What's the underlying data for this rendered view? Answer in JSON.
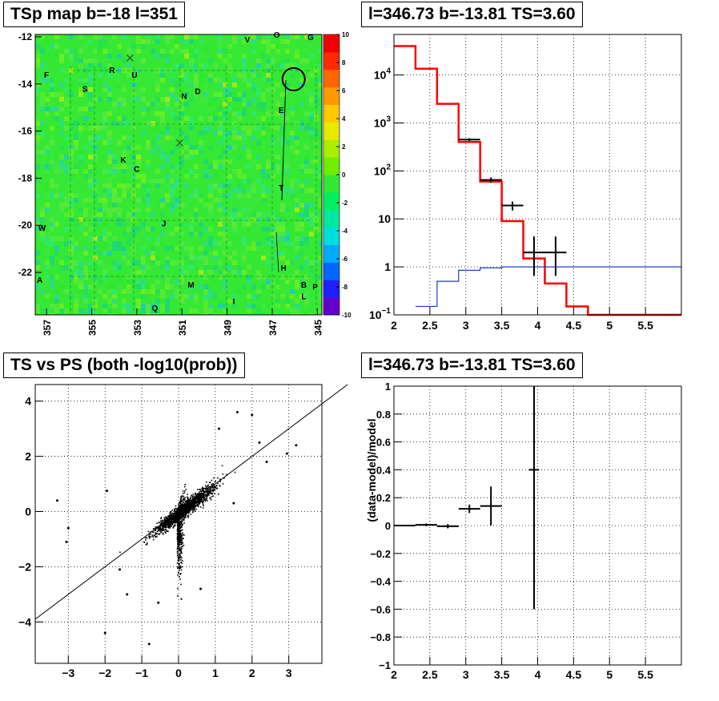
{
  "colors": {
    "map_background": "#35e834",
    "histogram_model": "#ff0000",
    "histogram_baseline": "#1f3fbf",
    "ink": "#000000",
    "frame": "#000000"
  },
  "chart_data": [
    {
      "type": "heatmap",
      "title": "TSp map b=-18 l=351",
      "x_ticks": [
        "357",
        "355",
        "353",
        "351",
        "349",
        "347",
        "345"
      ],
      "y_ticks": [
        "-12",
        "-14",
        "-16",
        "-18",
        "-20",
        "-22"
      ],
      "xlim": [
        357.5,
        344.8
      ],
      "ylim": [
        -23.8,
        -11.9
      ],
      "colorbar": {
        "ticks": [
          "10",
          "8",
          "6",
          "4",
          "2",
          "0",
          "-2",
          "-4",
          "-6",
          "-8",
          "-10"
        ],
        "range": [
          -10,
          10
        ],
        "colors": [
          "#6600cc",
          "#2020ff",
          "#0066ff",
          "#00aaff",
          "#00dddd",
          "#00e8a0",
          "#00ee60",
          "#35e834",
          "#70ee00",
          "#aaee00",
          "#e8e800",
          "#ffc800",
          "#ff9900",
          "#ff6600",
          "#ff2a00",
          "#ee0000"
        ]
      },
      "source_labels": [
        {
          "label": "F",
          "l": 357.0,
          "b": -13.6
        },
        {
          "label": "R",
          "l": 354.1,
          "b": -13.4
        },
        {
          "label": "U",
          "l": 353.1,
          "b": -13.6
        },
        {
          "label": "S",
          "l": 355.3,
          "b": -14.2
        },
        {
          "label": "N",
          "l": 350.9,
          "b": -14.5
        },
        {
          "label": "D",
          "l": 350.3,
          "b": -14.3
        },
        {
          "label": "V",
          "l": 348.1,
          "b": -12.1
        },
        {
          "label": "O",
          "l": 346.8,
          "b": -11.9
        },
        {
          "label": "G",
          "l": 345.3,
          "b": -12.0
        },
        {
          "label": "E",
          "l": 346.6,
          "b": -15.1
        },
        {
          "label": "K",
          "l": 353.6,
          "b": -17.2
        },
        {
          "label": "C",
          "l": 353.0,
          "b": -17.6
        },
        {
          "label": "T",
          "l": 346.6,
          "b": -18.4
        },
        {
          "label": "J",
          "l": 351.8,
          "b": -19.9
        },
        {
          "label": "W",
          "l": 357.2,
          "b": -20.1
        },
        {
          "label": "H",
          "l": 346.5,
          "b": -21.8
        },
        {
          "label": "A",
          "l": 357.3,
          "b": -22.3
        },
        {
          "label": "M",
          "l": 350.6,
          "b": -22.5
        },
        {
          "label": "B",
          "l": 345.6,
          "b": -22.5
        },
        {
          "label": "P",
          "l": 345.1,
          "b": -22.6
        },
        {
          "label": "L",
          "l": 345.6,
          "b": -23.0
        },
        {
          "label": "I",
          "l": 348.7,
          "b": -23.2
        },
        {
          "label": "Q",
          "l": 352.2,
          "b": -23.5
        }
      ],
      "cross_markers": [
        {
          "l": 353.3,
          "b": -12.9
        },
        {
          "l": 351.1,
          "b": -16.5
        }
      ],
      "circle_marker": {
        "l": 346.05,
        "b": -13.8
      }
    },
    {
      "type": "line",
      "title": "l=346.73 b=-13.81 TS=3.60",
      "xlim": [
        2,
        6
      ],
      "ylim": [
        0.1,
        70000
      ],
      "log_y": true,
      "grid": true,
      "x_ticks": [
        "2",
        "2.5",
        "3",
        "3.5",
        "4",
        "4.5",
        "5",
        "5.5"
      ],
      "y_ticks": [
        {
          "value": 10000,
          "base": "10",
          "exp": "4"
        },
        {
          "value": 1000,
          "base": "10",
          "exp": "3"
        },
        {
          "value": 100,
          "base": "10",
          "exp": "2"
        },
        {
          "value": 10,
          "base": "10",
          "exp": ""
        },
        {
          "value": 1,
          "base": "1",
          "exp": ""
        },
        {
          "value": 0.1,
          "base": "10",
          "exp": "−1"
        }
      ],
      "series": [
        {
          "kind": "step",
          "color": "#ff0000",
          "edges": [
            2.0,
            2.3,
            2.6,
            2.9,
            3.2,
            3.5,
            3.8,
            4.1,
            4.4,
            4.7,
            6.0
          ],
          "values": [
            40000,
            13500,
            2500,
            400,
            60,
            9,
            1.5,
            0.45,
            0.15,
            0.1
          ]
        },
        {
          "kind": "step",
          "color": "#1f3fbf",
          "edges": [
            2.3,
            2.6,
            2.9,
            3.2,
            3.5,
            3.8,
            4.1,
            6.0
          ],
          "values": [
            0.15,
            0.5,
            0.85,
            0.95,
            1.0,
            1.0,
            1.0
          ]
        },
        {
          "kind": "points",
          "color": "#000000",
          "points": [
            {
              "x": 3.05,
              "y": 450,
              "xerr": 0.15,
              "ylo": 420,
              "yhi": 480
            },
            {
              "x": 3.35,
              "y": 65,
              "xerr": 0.15,
              "ylo": 57,
              "yhi": 73
            },
            {
              "x": 3.65,
              "y": 19,
              "xerr": 0.15,
              "ylo": 15,
              "yhi": 23
            },
            {
              "x": 3.95,
              "y": 2,
              "xerr": 0.15,
              "ylo": 0.65,
              "yhi": 4.3
            },
            {
              "x": 4.25,
              "y": 2,
              "xerr": 0.15,
              "ylo": 0.65,
              "yhi": 4.3
            }
          ]
        }
      ]
    },
    {
      "type": "scatter",
      "title": "TS vs PS (both -log10(prob))",
      "xlim": [
        -3.9,
        3.9
      ],
      "ylim": [
        -5.5,
        4.6
      ],
      "grid": true,
      "x_ticks": [
        "−3",
        "−2",
        "−1",
        "0",
        "1",
        "2",
        "3"
      ],
      "y_ticks": [
        "4",
        "2",
        "0",
        "−2",
        "−4"
      ],
      "diagonal_line": {
        "x0": -3.9,
        "y0": -3.9,
        "x1": 4.6,
        "y1": 4.6
      },
      "cloud": {
        "center": [
          0.15,
          0.1
        ],
        "count": 9000
      },
      "outliers": [
        {
          "x": -3.0,
          "y": -0.6
        },
        {
          "x": -3.05,
          "y": -1.1
        },
        {
          "x": -3.3,
          "y": 0.4
        },
        {
          "x": -2.0,
          "y": -4.4
        },
        {
          "x": -0.8,
          "y": -4.8
        },
        {
          "x": -1.95,
          "y": 0.75
        },
        {
          "x": -1.6,
          "y": -2.1
        },
        {
          "x": -1.4,
          "y": -3.0
        },
        {
          "x": -0.55,
          "y": -3.3
        },
        {
          "x": 3.2,
          "y": 2.4
        },
        {
          "x": 2.95,
          "y": 2.1
        },
        {
          "x": 2.0,
          "y": 3.5
        },
        {
          "x": 1.6,
          "y": 3.6
        },
        {
          "x": 2.2,
          "y": 2.5
        },
        {
          "x": 2.4,
          "y": 1.8
        },
        {
          "x": 1.5,
          "y": 0.3
        },
        {
          "x": 1.1,
          "y": 3.0
        },
        {
          "x": 0.6,
          "y": -2.8
        }
      ]
    },
    {
      "type": "line",
      "title": "l=346.73 b=-13.81 TS=3.60",
      "ylabel": "(data-model)/model",
      "xlim": [
        2,
        6
      ],
      "ylim": [
        -1,
        1
      ],
      "grid": true,
      "x_ticks": [
        "2",
        "2.5",
        "3",
        "3.5",
        "4",
        "4.5",
        "5",
        "5.5"
      ],
      "y_ticks": [
        "1",
        "0.8",
        "0.6",
        "0.4",
        "0.2",
        "0",
        "−0.2",
        "−0.4",
        "−0.6",
        "−0.8",
        "−1"
      ],
      "points": [
        {
          "x": 2.15,
          "y": 0.0,
          "xerr": 0.15,
          "ylo": -0.005,
          "yhi": 0.005
        },
        {
          "x": 2.45,
          "y": 0.005,
          "xerr": 0.15,
          "ylo": -0.005,
          "yhi": 0.015
        },
        {
          "x": 2.75,
          "y": -0.005,
          "xerr": 0.15,
          "ylo": -0.02,
          "yhi": 0.01
        },
        {
          "x": 3.05,
          "y": 0.12,
          "xerr": 0.15,
          "ylo": 0.09,
          "yhi": 0.15
        },
        {
          "x": 3.35,
          "y": 0.14,
          "xerr": 0.15,
          "ylo": 0.0,
          "yhi": 0.28
        },
        {
          "x": 3.95,
          "y": 0.4,
          "xerr": 0.07,
          "ylo": -0.6,
          "yhi": 1.0
        }
      ]
    }
  ]
}
